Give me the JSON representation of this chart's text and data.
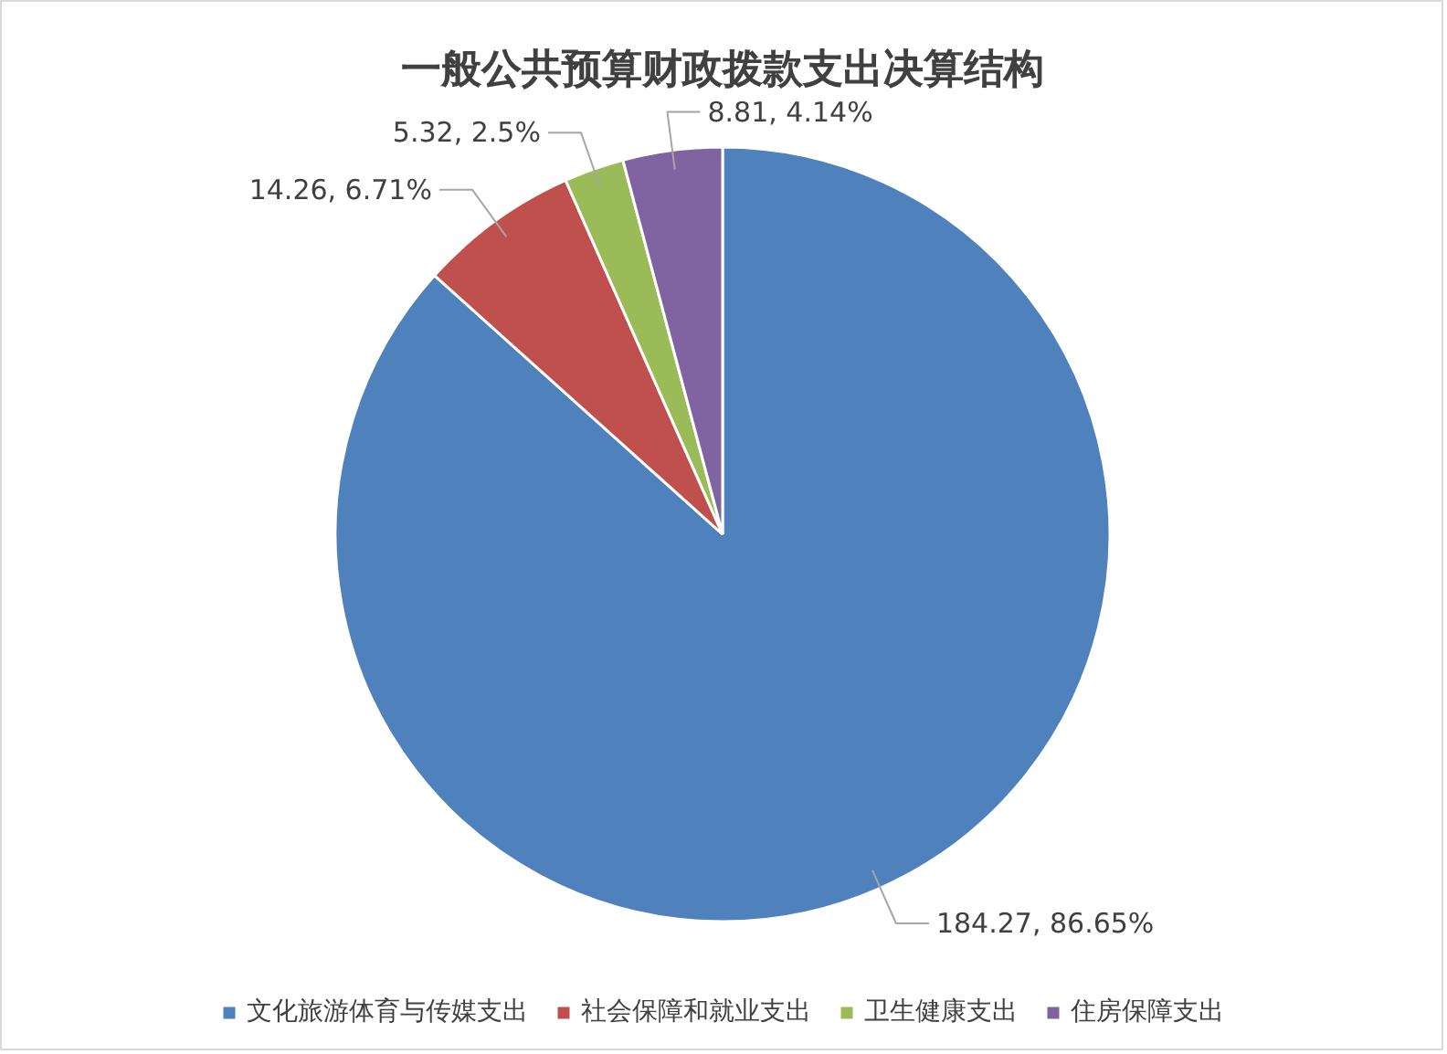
{
  "chart_data": {
    "type": "pie",
    "title": "一般公共预算财政拨款支出决算结构",
    "categories": [
      "文化旅游体育与传媒支出",
      "社会保障和就业支出",
      "卫生健康支出",
      "住房保障支出"
    ],
    "values": [
      184.27,
      14.26,
      5.32,
      8.81
    ],
    "colors": [
      "#4f81bd",
      "#c0504d",
      "#9bbb59",
      "#8064a2"
    ],
    "value_labels": [
      "184.27, 86.65%",
      "14.26, 6.71%",
      "5.32, 2.5%",
      "8.81, 4.14%"
    ],
    "legend": "bottom"
  }
}
